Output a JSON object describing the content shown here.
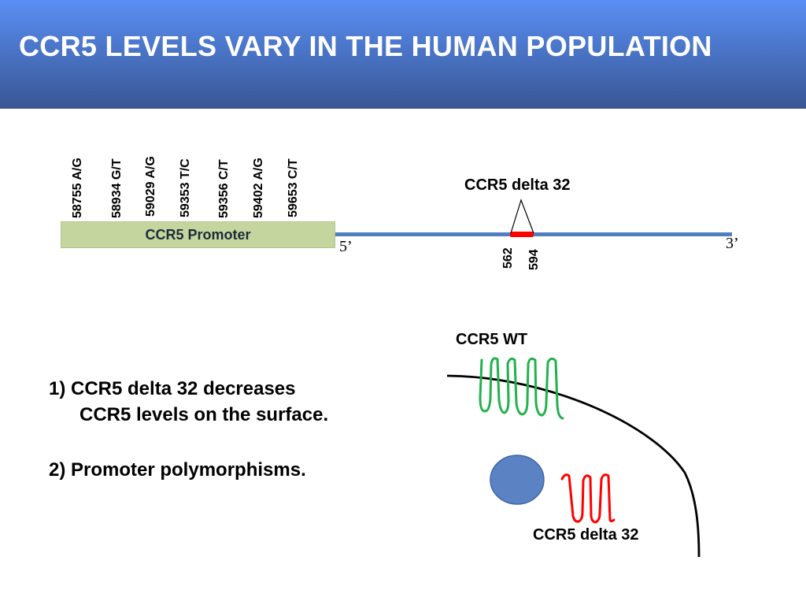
{
  "slide": {
    "title": "CCR5 LEVELS VARY IN THE HUMAN POPULATION"
  },
  "gene_map": {
    "polymorphisms": [
      "58755 A/G",
      "58934 G/T",
      "59029 A/G",
      "59353 T/C",
      "59356 C/T",
      "59402 A/G",
      "59653 C/T"
    ],
    "promoter_label": "CCR5 Promoter",
    "five_prime": "5’",
    "three_prime": "3’",
    "deletion_label": "CCR5 delta 32",
    "deletion_start": "562",
    "deletion_end": "594",
    "colors": {
      "promoter": "#c4d69e",
      "gene_line": "#4f7fc0",
      "deletion": "#ff0000"
    }
  },
  "points": {
    "item1_line1": "1)  CCR5 delta 32 decreases",
    "item1_line2": "CCR5 levels on the surface.",
    "item2": "2) Promoter polymorphisms."
  },
  "cell_diagram": {
    "wt_label": "CCR5 WT",
    "delta_label": "CCR5 delta 32",
    "colors": {
      "wt_receptor": "#22b14c",
      "delta_receptor": "#ff0000",
      "nucleus": "#5b82c2",
      "membrane": "#000000"
    }
  }
}
